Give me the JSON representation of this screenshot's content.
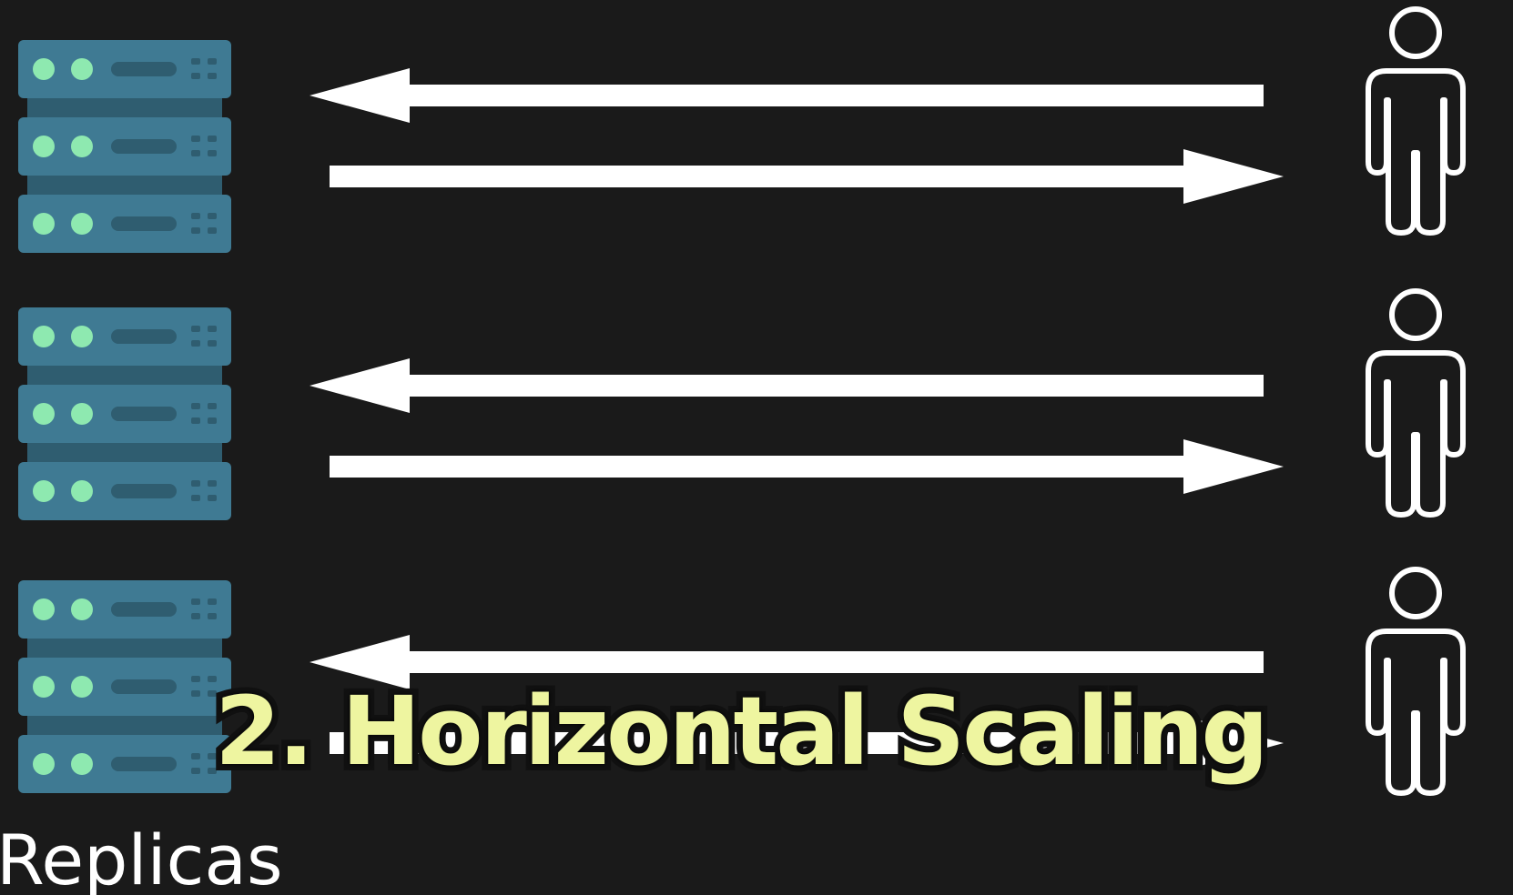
{
  "caption": "2. Horizontal Scaling",
  "label": "Replicas",
  "colors": {
    "background": "#1a1a1a",
    "server_body": "#3f7a93",
    "server_dark": "#2f5d70",
    "server_led": "#8ee9b0",
    "arrow": "#ffffff",
    "caption_text": "#eef5a0"
  },
  "icons": {
    "server": "server-rack-icon",
    "user": "person-icon",
    "request": "arrow-left",
    "response": "arrow-right"
  }
}
